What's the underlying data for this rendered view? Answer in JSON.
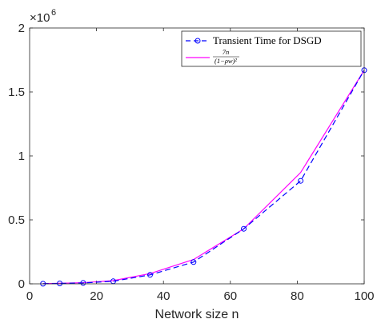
{
  "chart_data": {
    "type": "line",
    "xlabel": "Network size n",
    "ylabel": "",
    "xlim": [
      0,
      100
    ],
    "ylim": [
      0,
      2000000
    ],
    "xticks": [
      0,
      20,
      40,
      60,
      80,
      100
    ],
    "yticks": [
      0,
      500000,
      1000000,
      1500000,
      2000000
    ],
    "xtick_labels": [
      "0",
      "20",
      "40",
      "60",
      "80",
      "100"
    ],
    "ytick_labels": [
      "0",
      "0.5",
      "1",
      "1.5",
      "2"
    ],
    "y_multiplier_label": "×10",
    "y_multiplier_exponent": "6",
    "grid": false,
    "legend_position": "top-right",
    "series": [
      {
        "name": "Transient Time for DSGD",
        "color": "#0000ff",
        "line_style": "dashed",
        "marker": "circle",
        "x": [
          4,
          9,
          16,
          25,
          36,
          49,
          64,
          81,
          100
        ],
        "y": [
          1000,
          3000,
          7000,
          20000,
          70000,
          170000,
          430000,
          805000,
          1670000
        ]
      },
      {
        "name_numerator": "7n",
        "name_denominator": "(1−ρw)²",
        "color": "#ff00ff",
        "line_style": "solid",
        "marker": "none",
        "x": [
          4,
          9,
          16,
          25,
          36,
          49,
          64,
          81,
          100
        ],
        "y": [
          1500,
          4000,
          9000,
          25000,
          80000,
          190000,
          430000,
          870000,
          1670000
        ]
      }
    ]
  }
}
